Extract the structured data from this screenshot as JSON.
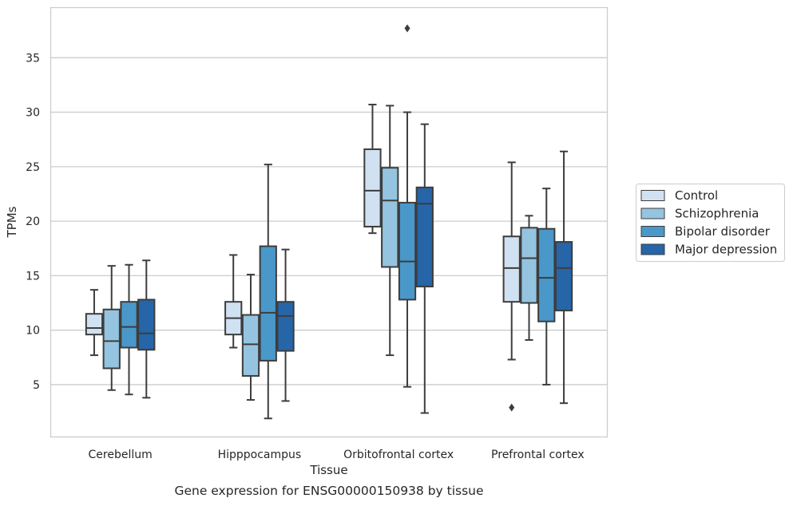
{
  "caption": "Gene expression for ENSG00000150938 by tissue",
  "chart_data": {
    "type": "box",
    "xlabel": "Tissue",
    "ylabel": "TPMs",
    "ylim": [
      0.2,
      39.6
    ],
    "yticks": [
      5,
      10,
      15,
      20,
      25,
      30,
      35
    ],
    "grid": "horizontal",
    "legend_position": "right",
    "categories": [
      "Cerebellum",
      "Hipppocampus",
      "Orbitofrontal cortex",
      "Prefrontal cortex"
    ],
    "series": [
      {
        "name": "Control",
        "color": "#d0e1f2",
        "boxes": [
          {
            "whisker_low": 7.7,
            "q1": 9.6,
            "median": 10.2,
            "q3": 11.5,
            "whisker_high": 13.7,
            "outliers": []
          },
          {
            "whisker_low": 8.4,
            "q1": 9.6,
            "median": 11.1,
            "q3": 12.6,
            "whisker_high": 16.9,
            "outliers": []
          },
          {
            "whisker_low": 18.9,
            "q1": 19.5,
            "median": 22.8,
            "q3": 26.6,
            "whisker_high": 30.7,
            "outliers": []
          },
          {
            "whisker_low": 7.3,
            "q1": 12.6,
            "median": 15.7,
            "q3": 18.6,
            "whisker_high": 25.4,
            "outliers": [
              2.9
            ]
          }
        ]
      },
      {
        "name": "Schizophrenia",
        "color": "#94c4df",
        "boxes": [
          {
            "whisker_low": 4.5,
            "q1": 6.5,
            "median": 9.0,
            "q3": 11.9,
            "whisker_high": 15.9,
            "outliers": []
          },
          {
            "whisker_low": 3.6,
            "q1": 5.8,
            "median": 8.7,
            "q3": 11.4,
            "whisker_high": 15.1,
            "outliers": []
          },
          {
            "whisker_low": 7.7,
            "q1": 15.8,
            "median": 21.9,
            "q3": 24.9,
            "whisker_high": 30.6,
            "outliers": []
          },
          {
            "whisker_low": 9.1,
            "q1": 12.5,
            "median": 16.6,
            "q3": 19.4,
            "whisker_high": 20.5,
            "outliers": []
          }
        ]
      },
      {
        "name": "Bipolar disorder",
        "color": "#4a98c9",
        "boxes": [
          {
            "whisker_low": 4.1,
            "q1": 8.4,
            "median": 10.3,
            "q3": 12.6,
            "whisker_high": 16.0,
            "outliers": []
          },
          {
            "whisker_low": 1.9,
            "q1": 7.2,
            "median": 11.6,
            "q3": 17.7,
            "whisker_high": 25.2,
            "outliers": []
          },
          {
            "whisker_low": 4.8,
            "q1": 12.8,
            "median": 16.3,
            "q3": 21.7,
            "whisker_high": 30.0,
            "outliers": [
              37.7
            ]
          },
          {
            "whisker_low": 5.0,
            "q1": 10.8,
            "median": 14.8,
            "q3": 19.3,
            "whisker_high": 23.0,
            "outliers": []
          }
        ]
      },
      {
        "name": "Major depression",
        "color": "#2565a8",
        "boxes": [
          {
            "whisker_low": 3.8,
            "q1": 8.2,
            "median": 9.7,
            "q3": 12.8,
            "whisker_high": 16.4,
            "outliers": []
          },
          {
            "whisker_low": 3.5,
            "q1": 8.1,
            "median": 11.3,
            "q3": 12.6,
            "whisker_high": 17.4,
            "outliers": []
          },
          {
            "whisker_low": 2.4,
            "q1": 14.0,
            "median": 21.6,
            "q3": 23.1,
            "whisker_high": 28.9,
            "outliers": []
          },
          {
            "whisker_low": 3.3,
            "q1": 11.8,
            "median": 15.7,
            "q3": 18.1,
            "whisker_high": 26.4,
            "outliers": []
          }
        ]
      }
    ]
  }
}
